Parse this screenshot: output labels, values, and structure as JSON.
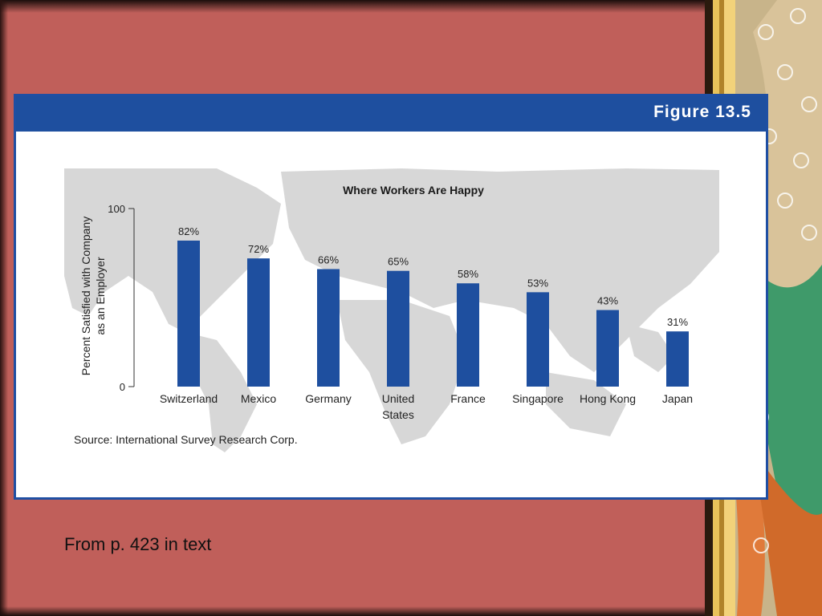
{
  "figure_label": "Figure 13.5",
  "caption": "From p. 423 in text",
  "source": "Source: International Survey Research Corp.",
  "colors": {
    "background": "#c05f5a",
    "header": "#1e4f9f",
    "bar": "#1e4f9f",
    "map": "#d7d7d7"
  },
  "chart_data": {
    "type": "bar",
    "title": "Where Workers Are Happy",
    "ylabel": "Percent Satisfied with Company as an Employer",
    "ylabel_lines": [
      "Percent Satisfied with Company",
      "as an Employer"
    ],
    "xlabel": "",
    "ylim": [
      0,
      100
    ],
    "yticks": [
      "0",
      "100"
    ],
    "grid": false,
    "categories": [
      [
        "Switzerland"
      ],
      [
        "Mexico"
      ],
      [
        "Germany"
      ],
      [
        "United",
        "States"
      ],
      [
        "France"
      ],
      [
        "Singapore"
      ],
      [
        "Hong Kong"
      ],
      [
        "Japan"
      ]
    ],
    "values": [
      82,
      72,
      66,
      65,
      58,
      53,
      43,
      31
    ],
    "value_labels": [
      "82%",
      "72%",
      "66%",
      "65%",
      "58%",
      "53%",
      "43%",
      "31%"
    ]
  }
}
